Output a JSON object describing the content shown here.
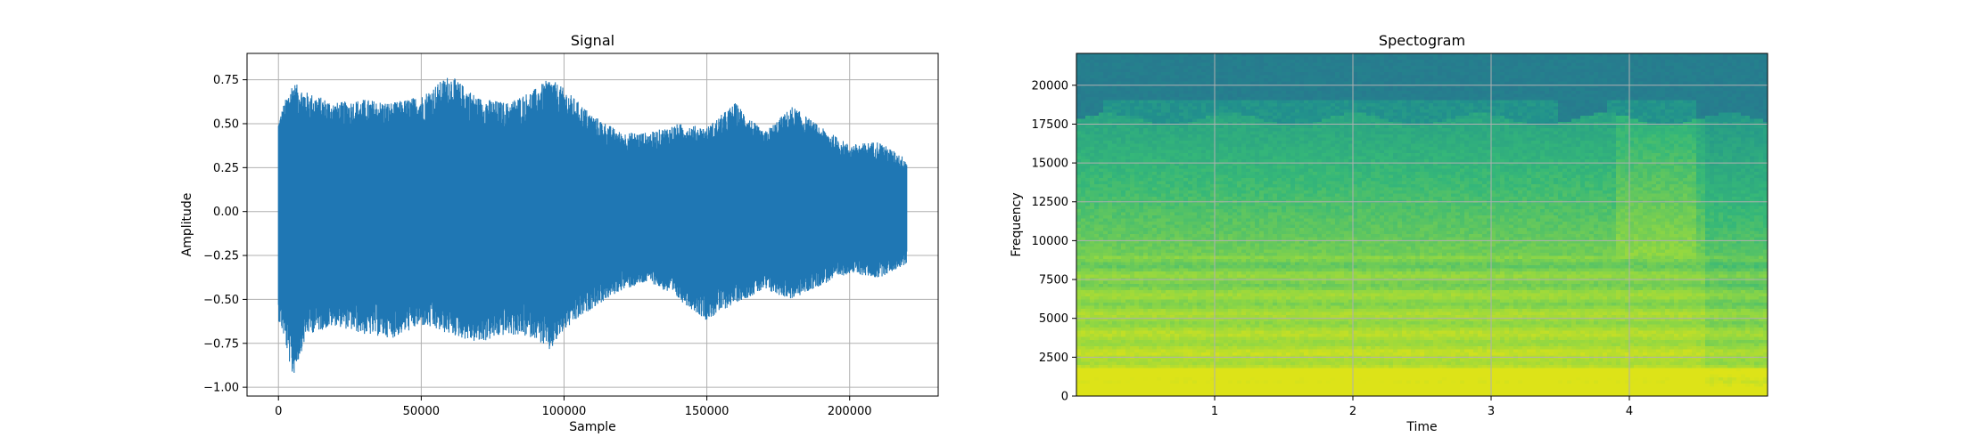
{
  "chart_data": [
    {
      "type": "line",
      "title": "Signal",
      "xlabel": "Sample",
      "ylabel": "Amplitude",
      "xlim": [
        -11000,
        231000
      ],
      "ylim": [
        -1.05,
        0.9
      ],
      "x_ticks": [
        0,
        50000,
        100000,
        150000,
        200000
      ],
      "x_tick_labels": [
        "0",
        "50000",
        "100000",
        "150000",
        "200000"
      ],
      "y_ticks": [
        -1.0,
        -0.75,
        -0.5,
        -0.25,
        0.0,
        0.25,
        0.5,
        0.75
      ],
      "y_tick_labels": [
        "−1.00",
        "−0.75",
        "−0.50",
        "−0.25",
        "0.00",
        "0.25",
        "0.50",
        "0.75"
      ],
      "grid": true,
      "series": [
        {
          "color": "#1f77b4",
          "envelope_x": [
            0,
            2000,
            5000,
            10000,
            20000,
            30000,
            40000,
            50000,
            60000,
            70000,
            80000,
            90000,
            95000,
            100000,
            110000,
            120000,
            130000,
            140000,
            150000,
            160000,
            170000,
            180000,
            190000,
            200000,
            210000,
            220000
          ],
          "envelope_upper": [
            0.52,
            0.62,
            0.74,
            0.68,
            0.62,
            0.64,
            0.62,
            0.66,
            0.78,
            0.65,
            0.62,
            0.7,
            0.76,
            0.7,
            0.55,
            0.45,
            0.45,
            0.5,
            0.48,
            0.62,
            0.45,
            0.6,
            0.48,
            0.38,
            0.4,
            0.3
          ],
          "envelope_lower": [
            -0.62,
            -0.72,
            -0.95,
            -0.7,
            -0.65,
            -0.7,
            -0.72,
            -0.65,
            -0.7,
            -0.75,
            -0.7,
            -0.72,
            -0.8,
            -0.68,
            -0.55,
            -0.45,
            -0.4,
            -0.5,
            -0.62,
            -0.52,
            -0.45,
            -0.5,
            -0.42,
            -0.35,
            -0.38,
            -0.3
          ]
        }
      ]
    },
    {
      "type": "heatmap",
      "title": "Spectogram",
      "xlabel": "Time",
      "ylabel": "Frequency",
      "xlim": [
        0,
        5.0
      ],
      "ylim": [
        0,
        22050
      ],
      "x_ticks": [
        1,
        2,
        3,
        4
      ],
      "x_tick_labels": [
        "1",
        "2",
        "3",
        "4"
      ],
      "y_ticks": [
        0,
        2500,
        5000,
        7500,
        10000,
        12500,
        15000,
        17500,
        20000
      ],
      "y_tick_labels": [
        "0",
        "2500",
        "5000",
        "7500",
        "10000",
        "12500",
        "15000",
        "17500",
        "20000"
      ],
      "grid": true,
      "colormap": [
        "#2a6f8e",
        "#21908d",
        "#35b779",
        "#90d743",
        "#dde318"
      ]
    }
  ]
}
